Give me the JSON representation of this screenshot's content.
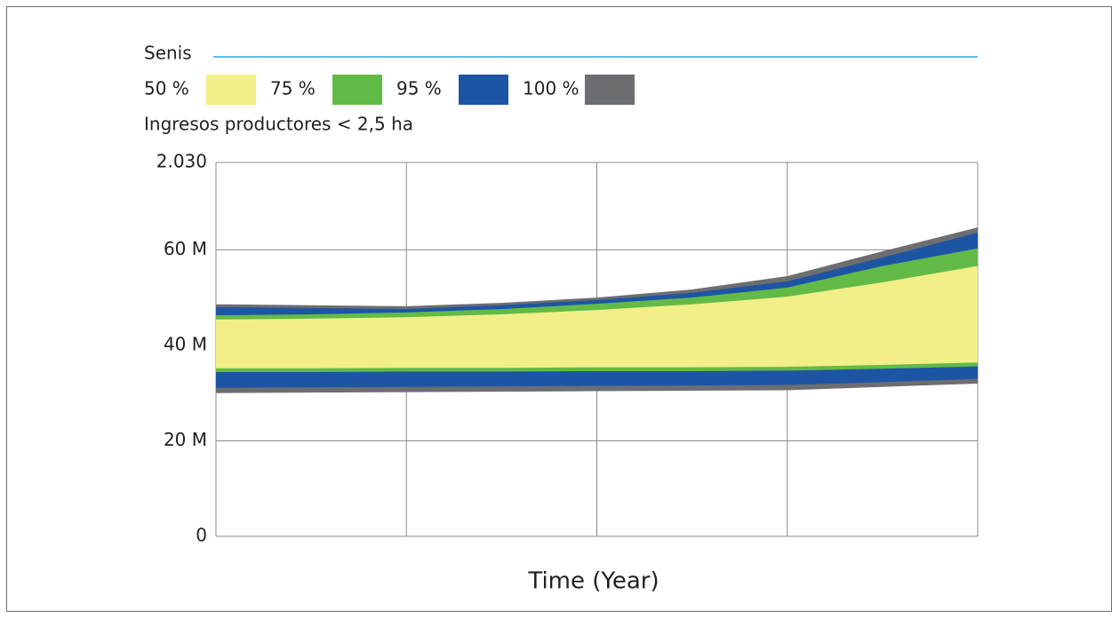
{
  "chart_data": {
    "type": "sensitivity",
    "title": "Senis",
    "subtitle": "Ingresos productores < 2,5 ha",
    "x_label": "Time (Year)",
    "title_line_color": "#29abe2",
    "categories": [
      null,
      null,
      null,
      null,
      null,
      null,
      null,
      null,
      null
    ],
    "ylim": [
      0,
      78.3
    ],
    "yticks": [
      0,
      {
        "value": 20,
        "label": "20 M"
      },
      {
        "value": 40,
        "label": "40 M"
      },
      {
        "value": 60,
        "label": "60 M"
      },
      {
        "value": 78.3,
        "label": "2.030"
      }
    ],
    "grid": true,
    "series": [
      {
        "name": "100 %",
        "color": "#6d6e71",
        "upper": [
          48.6,
          48.4,
          48.2,
          48.9,
          50.0,
          51.7,
          54.5,
          59.7,
          64.7
        ],
        "lower": [
          30.0,
          30.1,
          30.2,
          30.3,
          30.4,
          30.5,
          30.6,
          31.3,
          32.0
        ]
      },
      {
        "name": "95 %",
        "color": "#1d55a5",
        "upper": [
          48.0,
          47.8,
          47.6,
          48.4,
          49.5,
          51.0,
          53.4,
          58.4,
          63.6
        ],
        "lower": [
          31.1,
          31.2,
          31.3,
          31.4,
          31.5,
          31.6,
          31.7,
          32.3,
          33.0
        ]
      },
      {
        "name": "75 %",
        "color": "#62bb46",
        "upper": [
          46.3,
          46.5,
          46.9,
          47.6,
          48.7,
          50.0,
          52.1,
          56.6,
          60.3
        ],
        "lower": [
          34.4,
          34.4,
          34.5,
          34.5,
          34.6,
          34.6,
          34.7,
          35.1,
          35.6
        ]
      },
      {
        "name": "50 %",
        "color": "#f2ef88",
        "upper": [
          45.4,
          45.6,
          45.9,
          46.5,
          47.4,
          48.6,
          50.2,
          53.2,
          56.6
        ],
        "lower": [
          35.2,
          35.2,
          35.3,
          35.3,
          35.4,
          35.4,
          35.5,
          35.9,
          36.4
        ]
      }
    ]
  }
}
